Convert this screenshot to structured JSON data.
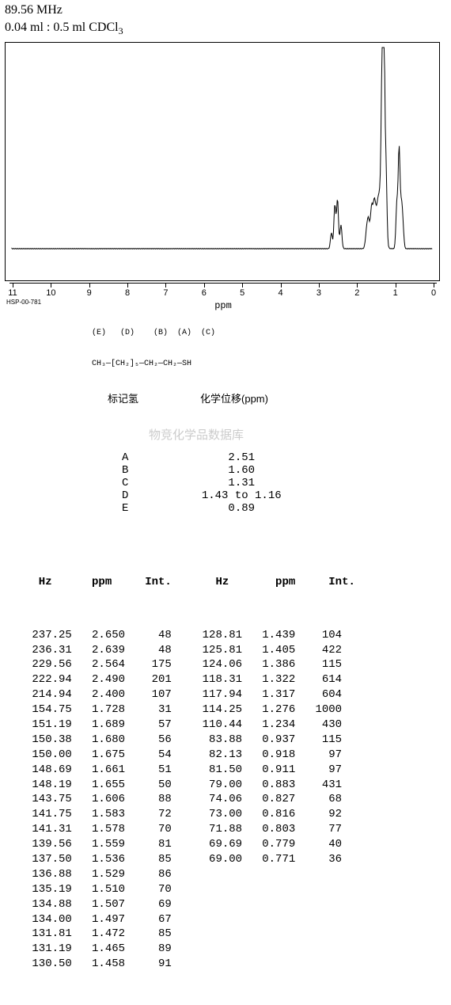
{
  "header": {
    "freq": "89.56 MHz",
    "solvent_prefix": "0.04 ml : 0.5 ml CDCl",
    "solvent_sub": "3"
  },
  "chart": {
    "frame_width": 548,
    "frame_height": 300,
    "xlim": [
      11,
      0
    ],
    "ticks": [
      11,
      10,
      9,
      8,
      7,
      6,
      5,
      4,
      3,
      2,
      1,
      0
    ],
    "axis_title": "ppm",
    "stroke": "#000000",
    "stroke_width": 1,
    "baseline_y": 260,
    "peaks_svg_path_comment": "approximate 1H NMR trace: flat baseline, small multiplet near 2.5, medium at 1.6, tall sharp cluster around 1.3, large at 0.9",
    "hsp_code": "HSP-00-781"
  },
  "structure": {
    "top": "(E)   (D)    (B)  (A)  (C)",
    "bottom": "CH₃—[CH₂]₅—CH₂—CH₂—SH"
  },
  "assign": {
    "header_left": "标记氢",
    "header_right": "化学位移(ppm)",
    "rows": [
      [
        "A",
        "2.51"
      ],
      [
        "B",
        "1.60"
      ],
      [
        "C",
        "1.31"
      ],
      [
        "D",
        "1.43 to 1.16"
      ],
      [
        "E",
        "0.89"
      ]
    ],
    "watermark": "物竞化学品数据库"
  },
  "peaks": {
    "headers": [
      "Hz",
      "ppm",
      "Int."
    ],
    "left": [
      [
        "237.25",
        "2.650",
        "48"
      ],
      [
        "236.31",
        "2.639",
        "48"
      ],
      [
        "229.56",
        "2.564",
        "175"
      ],
      [
        "222.94",
        "2.490",
        "201"
      ],
      [
        "214.94",
        "2.400",
        "107"
      ],
      [
        "154.75",
        "1.728",
        "31"
      ],
      [
        "151.19",
        "1.689",
        "57"
      ],
      [
        "150.38",
        "1.680",
        "56"
      ],
      [
        "150.00",
        "1.675",
        "54"
      ],
      [
        "148.69",
        "1.661",
        "51"
      ],
      [
        "148.19",
        "1.655",
        "50"
      ],
      [
        "143.75",
        "1.606",
        "88"
      ],
      [
        "141.75",
        "1.583",
        "72"
      ],
      [
        "141.31",
        "1.578",
        "70"
      ],
      [
        "139.56",
        "1.559",
        "81"
      ],
      [
        "137.50",
        "1.536",
        "85"
      ],
      [
        "136.88",
        "1.529",
        "86"
      ],
      [
        "135.19",
        "1.510",
        "70"
      ],
      [
        "134.88",
        "1.507",
        "69"
      ],
      [
        "134.00",
        "1.497",
        "67"
      ],
      [
        "131.81",
        "1.472",
        "85"
      ],
      [
        "131.19",
        "1.465",
        "89"
      ],
      [
        "130.50",
        "1.458",
        "91"
      ]
    ],
    "right": [
      [
        "128.81",
        "1.439",
        "104"
      ],
      [
        "125.81",
        "1.405",
        "422"
      ],
      [
        "124.06",
        "1.386",
        "115"
      ],
      [
        "118.31",
        "1.322",
        "614"
      ],
      [
        "117.94",
        "1.317",
        "604"
      ],
      [
        "114.25",
        "1.276",
        "1000"
      ],
      [
        "110.44",
        "1.234",
        "430"
      ],
      [
        "83.88",
        "0.937",
        "115"
      ],
      [
        "82.13",
        "0.918",
        "97"
      ],
      [
        "81.50",
        "0.911",
        "97"
      ],
      [
        "79.00",
        "0.883",
        "431"
      ],
      [
        "74.06",
        "0.827",
        "68"
      ],
      [
        "73.00",
        "0.816",
        "92"
      ],
      [
        "71.88",
        "0.803",
        "77"
      ],
      [
        "69.69",
        "0.779",
        "40"
      ],
      [
        "69.00",
        "0.771",
        "36"
      ]
    ]
  }
}
